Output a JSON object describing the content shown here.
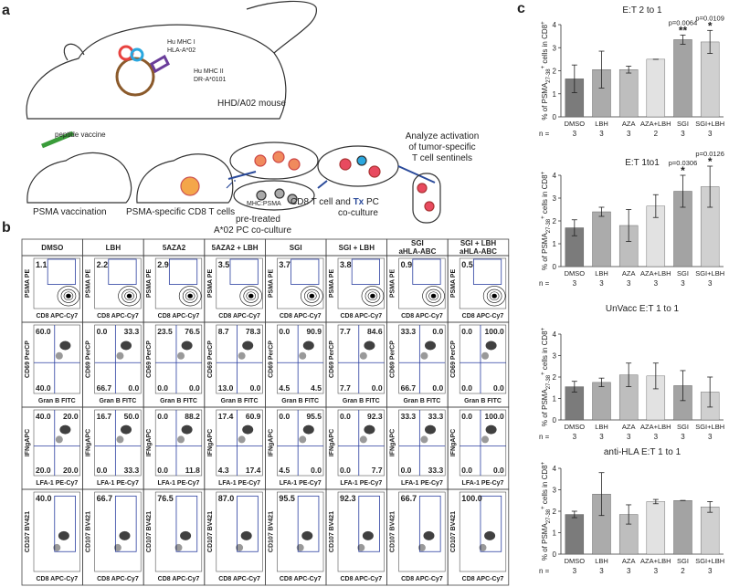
{
  "panel_a": {
    "label": "a",
    "mhc1": [
      "Hu MHC I",
      "HLA-A*02"
    ],
    "mhc2": [
      "Hu MHC II",
      "DR-A*0101"
    ],
    "mouse": "HHD/A02 mouse",
    "vaccine": "peptide vaccine",
    "step1": "PSMA vaccination",
    "step2": "PSMA-specific CD8 T cells",
    "mhc_psma": "MHC:PSMA",
    "pretreated": [
      "pre-treated",
      "A*02 PC co-culture"
    ],
    "coculture": [
      "CD8 T cell  and ",
      "Tx",
      " PC",
      "co-culture"
    ],
    "analyze": [
      "Analyze activation",
      "of tumor-specific",
      "T cell sentinels"
    ]
  },
  "panel_b": {
    "label": "b",
    "columns": [
      [
        "DMSO"
      ],
      [
        "LBH"
      ],
      [
        "5AZA2"
      ],
      [
        "5AZA2 + LBH"
      ],
      [
        "SGI"
      ],
      [
        "SGI + LBH"
      ],
      [
        "SGI",
        "aHLA-ABC"
      ],
      [
        "SGI + LBH",
        "aHLA-ABC"
      ]
    ],
    "rows": [
      {
        "kind": "gate",
        "y_label": "PSMA PE",
        "x_label": "CD8 APC-Cy7",
        "values": [
          [
            "1.1"
          ],
          [
            "2.2"
          ],
          [
            "2.9"
          ],
          [
            "3.5"
          ],
          [
            "3.7"
          ],
          [
            "3.8"
          ],
          [
            "0.9"
          ],
          [
            "0.5"
          ]
        ]
      },
      {
        "kind": "quadrant",
        "y_label": "CD69 PerCP",
        "x_label": "Gran B FITC",
        "values": [
          [
            "60.0",
            null,
            "40.0",
            null
          ],
          [
            "0.0",
            "33.3",
            "66.7",
            "0.0"
          ],
          [
            "23.5",
            "76.5",
            "0.0",
            "0.0"
          ],
          [
            "8.7",
            "78.3",
            "13.0",
            "0.0"
          ],
          [
            "0.0",
            "90.9",
            "4.5",
            "4.5"
          ],
          [
            "7.7",
            "84.6",
            "7.7",
            "0.0"
          ],
          [
            "33.3",
            "0.0",
            "66.7",
            "0.0"
          ],
          [
            "0.0",
            "100.0",
            "0.0",
            "0.0"
          ]
        ]
      },
      {
        "kind": "quadrant",
        "y_label": "IFNgAPC",
        "x_label": "LFA-1 PE-Cy7",
        "values": [
          [
            "40.0",
            "20.0",
            "20.0",
            "20.0"
          ],
          [
            "16.7",
            "50.0",
            "0.0",
            "33.3"
          ],
          [
            "0.0",
            "88.2",
            "0.0",
            "11.8"
          ],
          [
            "17.4",
            "60.9",
            "4.3",
            "17.4"
          ],
          [
            "0.0",
            "95.5",
            "4.5",
            "0.0"
          ],
          [
            "0.0",
            "92.3",
            "0.0",
            "7.7"
          ],
          [
            "33.3",
            "33.3",
            "0.0",
            "33.3"
          ],
          [
            "0.0",
            "100.0",
            "0.0",
            "0.0"
          ]
        ]
      },
      {
        "kind": "gate2",
        "y_label": "CD107 BV421",
        "x_label": "CD8 APC-Cy7",
        "values": [
          [
            "40.0"
          ],
          [
            "66.7"
          ],
          [
            "76.5"
          ],
          [
            "87.0"
          ],
          [
            "95.5"
          ],
          [
            "92.3"
          ],
          [
            "66.7"
          ],
          [
            "100.0"
          ]
        ]
      }
    ]
  },
  "chart_data": [
    {
      "type": "bar",
      "panel_label": "c",
      "title": "E:T 2 to 1",
      "categories": [
        "DMSO",
        "LBH",
        "AZA",
        "AZA+LBH",
        "SGI",
        "SGI+LBH"
      ],
      "values": [
        1.65,
        2.05,
        2.05,
        2.5,
        3.35,
        3.25
      ],
      "errors": [
        0.6,
        0.8,
        0.15,
        0,
        0.2,
        0.5
      ],
      "colors": [
        "#7b7b7b",
        "#ababab",
        "#bebebe",
        "#e2e2e2",
        "#a3a3a3",
        "#d0d0d0"
      ],
      "n_label": "n =",
      "n": [
        3,
        3,
        3,
        2,
        3,
        3
      ],
      "y_label": [
        "% of PSMA",
        "27-38",
        "+",
        " cells in CD8",
        "+"
      ],
      "ylim": [
        0,
        4
      ],
      "yticks": [
        0,
        1,
        2,
        3,
        4
      ],
      "annotations": [
        {
          "category": "SGI",
          "p": "p=0.0064",
          "stars": "**"
        },
        {
          "category": "SGI+LBH",
          "p": "p=0.0109",
          "stars": "*"
        }
      ]
    },
    {
      "type": "bar",
      "title": "E:T 1to1",
      "categories": [
        "DMSO",
        "LBH",
        "AZA",
        "AZA+LBH",
        "SGI",
        "SGI+LBH"
      ],
      "values": [
        1.7,
        2.4,
        1.8,
        2.65,
        3.3,
        3.5
      ],
      "errors": [
        0.35,
        0.2,
        0.7,
        0.5,
        0.7,
        0.9
      ],
      "colors": [
        "#7b7b7b",
        "#ababab",
        "#bebebe",
        "#e2e2e2",
        "#a3a3a3",
        "#d0d0d0"
      ],
      "n_label": "n =",
      "n": [
        3,
        3,
        3,
        3,
        3,
        3
      ],
      "y_label": [
        "% of PSMA",
        "27-38",
        "+",
        " cells in CD8",
        "+"
      ],
      "ylim": [
        0,
        4
      ],
      "yticks": [
        0,
        1,
        2,
        3,
        4
      ],
      "annotations": [
        {
          "category": "SGI",
          "p": "p=0.0306",
          "stars": "*"
        },
        {
          "category": "SGI+LBH",
          "p": "p=0.0126",
          "stars": "*"
        }
      ]
    },
    {
      "type": "bar",
      "title": "UnVacc E:T 1 to 1",
      "categories": [
        "DMSO",
        "LBH",
        "AZA",
        "AZA+LBH",
        "SGI",
        "SGI+LBH"
      ],
      "values": [
        1.55,
        1.75,
        2.1,
        2.05,
        1.6,
        1.3
      ],
      "errors": [
        0.25,
        0.2,
        0.55,
        0.6,
        0.7,
        0.7
      ],
      "colors": [
        "#7b7b7b",
        "#ababab",
        "#bebebe",
        "#e2e2e2",
        "#a3a3a3",
        "#d0d0d0"
      ],
      "n_label": "n =",
      "n": [
        3,
        3,
        3,
        3,
        3,
        3
      ],
      "y_label": [
        "% of PSMA",
        "27-38",
        "+",
        " cells in CD8",
        "+"
      ],
      "ylim": [
        0,
        4
      ],
      "yticks": [
        0,
        1,
        2,
        3,
        4
      ],
      "annotations": []
    },
    {
      "type": "bar",
      "title": "anti-HLA E:T  1 to 1",
      "categories": [
        "DMSO",
        "LBH",
        "AZA",
        "AZA+LBH",
        "SGI",
        "SGI+LBH"
      ],
      "values": [
        1.85,
        2.8,
        1.85,
        2.45,
        2.5,
        2.2
      ],
      "errors": [
        0.15,
        1.0,
        0.45,
        0.1,
        0,
        0.25
      ],
      "colors": [
        "#7b7b7b",
        "#ababab",
        "#bebebe",
        "#e2e2e2",
        "#a3a3a3",
        "#d0d0d0"
      ],
      "n_label": "n =",
      "n": [
        3,
        3,
        3,
        3,
        2,
        3
      ],
      "y_label": [
        "% of PSMA",
        "27-38",
        "+",
        " cells in CD8",
        "+"
      ],
      "ylim": [
        0,
        4
      ],
      "yticks": [
        0,
        1,
        2,
        3,
        4
      ],
      "annotations": []
    }
  ]
}
